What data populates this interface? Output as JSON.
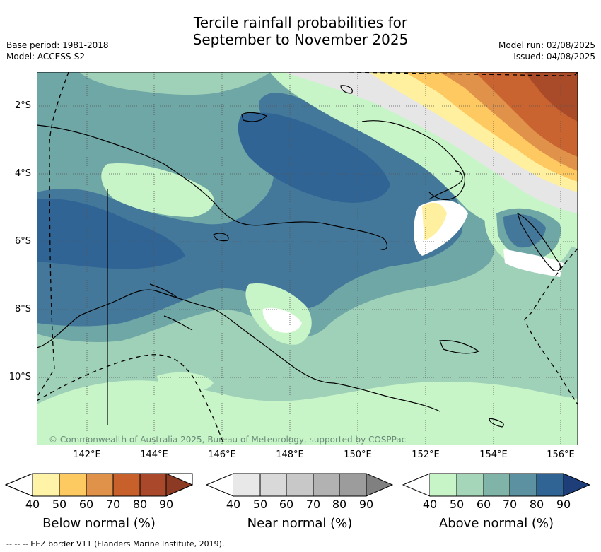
{
  "title_line1": "Tercile rainfall probabilities for",
  "title_line2": "September to November 2025",
  "meta_left": [
    "Base period: 1981-2018",
    "Model: ACCESS-S2"
  ],
  "meta_right": [
    "Model run: 02/08/2025",
    "Issued: 04/08/2025"
  ],
  "lat_labels": [
    "2°S",
    "4°S",
    "6°S",
    "8°S",
    "10°S"
  ],
  "lon_labels": [
    "142°E",
    "144°E",
    "146°E",
    "148°E",
    "150°E",
    "152°E",
    "154°E",
    "156°E"
  ],
  "credit": "© Commonwealth of Australia 2025, Bureau of Meteorology, supported by COSPPac",
  "colorbars": [
    {
      "title": "Below normal (%)",
      "ticks": [
        "40",
        "50",
        "60",
        "70",
        "80",
        "90"
      ],
      "colors": [
        "#fff3a8",
        "#fdca62",
        "#e0924a",
        "#c8602c",
        "#a9482a",
        "#8c3a24"
      ]
    },
    {
      "title": "Near normal (%)",
      "ticks": [
        "40",
        "50",
        "60",
        "70",
        "80",
        "90"
      ],
      "colors": [
        "#e8e8e8",
        "#d9d9d9",
        "#c8c8c8",
        "#b2b2b2",
        "#9c9c9c",
        "#808080"
      ]
    },
    {
      "title": "Above normal (%)",
      "ticks": [
        "40",
        "50",
        "60",
        "70",
        "80",
        "90"
      ],
      "colors": [
        "#c8f5c8",
        "#a5d6b9",
        "#80b4a8",
        "#5b91a0",
        "#2f6494",
        "#1d3e78"
      ]
    }
  ],
  "footer": "--  --  -- EEZ border V11 (Flanders Marine Institute, 2019).",
  "map_colors": {
    "above_40": "#c8f5c8",
    "above_50": "#9fd1b8",
    "above_60": "#6fa6a6",
    "above_70": "#44789a",
    "above_80": "#2f6494",
    "near_40": "#e6e6e6",
    "below_40": "#fff0a0",
    "below_50": "#fdc960",
    "below_60": "#e0924a",
    "below_70": "#c96330",
    "below_80": "#a94a28"
  }
}
